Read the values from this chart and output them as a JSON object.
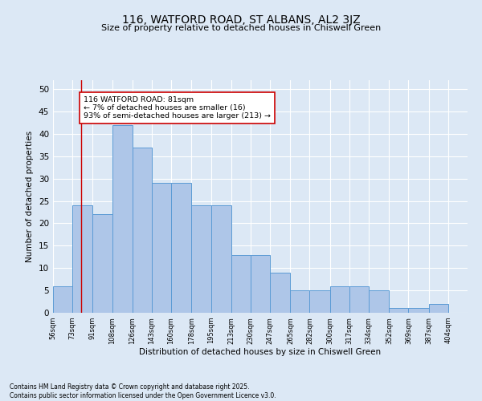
{
  "title1": "116, WATFORD ROAD, ST ALBANS, AL2 3JZ",
  "title2": "Size of property relative to detached houses in Chiswell Green",
  "xlabel": "Distribution of detached houses by size in Chiswell Green",
  "ylabel": "Number of detached properties",
  "categories": [
    "56sqm",
    "73sqm",
    "91sqm",
    "108sqm",
    "126sqm",
    "143sqm",
    "160sqm",
    "178sqm",
    "195sqm",
    "213sqm",
    "230sqm",
    "247sqm",
    "265sqm",
    "282sqm",
    "300sqm",
    "317sqm",
    "334sqm",
    "352sqm",
    "369sqm",
    "387sqm",
    "404sqm"
  ],
  "bar_heights": [
    6,
    24,
    22,
    42,
    37,
    29,
    29,
    24,
    24,
    13,
    13,
    9,
    5,
    5,
    6,
    6,
    5,
    1,
    1,
    2,
    0
  ],
  "bin_edges": [
    56,
    73,
    91,
    108,
    126,
    143,
    160,
    178,
    195,
    213,
    230,
    247,
    265,
    282,
    300,
    317,
    334,
    352,
    369,
    387,
    404,
    421
  ],
  "bar_color": "#aec6e8",
  "bar_edge_color": "#5b9bd5",
  "vline_x": 81,
  "vline_color": "#cc0000",
  "annotation_text": "116 WATFORD ROAD: 81sqm\n← 7% of detached houses are smaller (16)\n93% of semi-detached houses are larger (213) →",
  "annotation_box_color": "#ffffff",
  "annotation_box_edge": "#cc0000",
  "plot_bg": "#dce8f5",
  "fig_bg": "#dce8f5",
  "ylim": [
    0,
    52
  ],
  "yticks": [
    0,
    5,
    10,
    15,
    20,
    25,
    30,
    35,
    40,
    45,
    50
  ],
  "grid_color": "#ffffff",
  "footer1": "Contains HM Land Registry data © Crown copyright and database right 2025.",
  "footer2": "Contains public sector information licensed under the Open Government Licence v3.0."
}
